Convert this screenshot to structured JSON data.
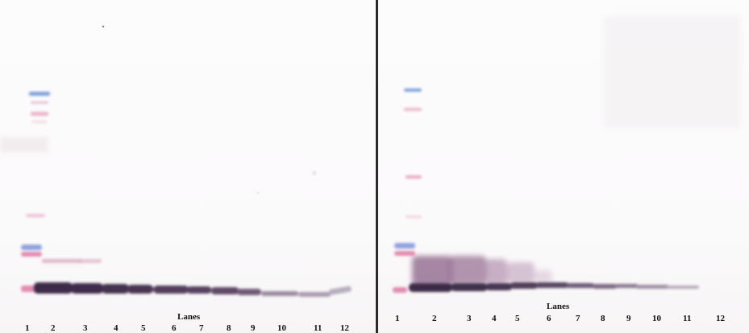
{
  "panels": [
    {
      "id": "left",
      "axis_title": "Lanes",
      "lane_labels": [
        "1",
        "2",
        "3",
        "4",
        "5",
        "6",
        "7",
        "8",
        "9",
        "10",
        "11",
        "12"
      ]
    },
    {
      "id": "right",
      "axis_title": "Lanes",
      "lane_labels": [
        "1",
        "2",
        "3",
        "4",
        "5",
        "6",
        "7",
        "8",
        "9",
        "10",
        "11",
        "12"
      ]
    }
  ],
  "colors": {
    "band": "#3d2a4a",
    "ladder_blue": "#7f9fdc",
    "ladder_pink": "#e48ab0",
    "smear": "#8a5f86",
    "divider": "#2a2a2a"
  }
}
